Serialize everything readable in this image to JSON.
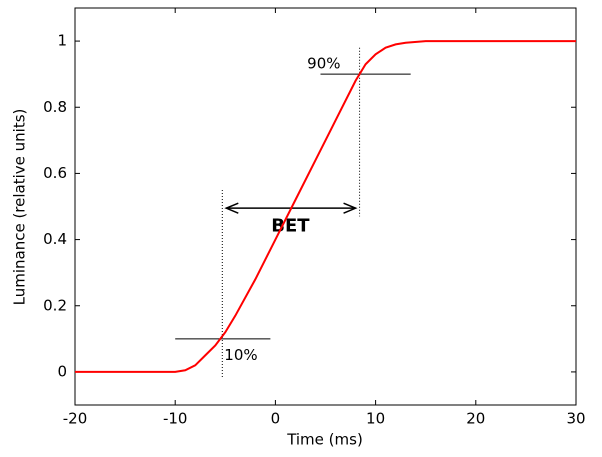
{
  "chart_data": {
    "type": "line",
    "xlabel": "Time (ms)",
    "ylabel": "Luminance (relative units)",
    "x": [
      -20,
      -10,
      -9,
      -8,
      -7,
      -6,
      -5,
      -4,
      -2,
      0,
      2,
      4,
      6,
      8,
      9,
      10,
      11,
      12,
      13,
      15,
      20,
      25,
      30
    ],
    "series": [
      {
        "color": "#ff0000",
        "values": [
          0,
          0,
          0.005,
          0.02,
          0.05,
          0.08,
          0.12,
          0.17,
          0.28,
          0.4,
          0.52,
          0.64,
          0.76,
          0.88,
          0.93,
          0.96,
          0.98,
          0.99,
          0.995,
          1,
          1,
          1,
          1
        ]
      }
    ],
    "xlim": [
      -20,
      30
    ],
    "xticks": [
      -20,
      -10,
      0,
      10,
      20,
      30
    ],
    "ylim": [
      -0.1,
      1.1
    ],
    "yticks": [
      0,
      0.2,
      0.4,
      0.6,
      0.8,
      1
    ],
    "annotations": [
      "BET",
      "10%",
      "90%"
    ]
  }
}
